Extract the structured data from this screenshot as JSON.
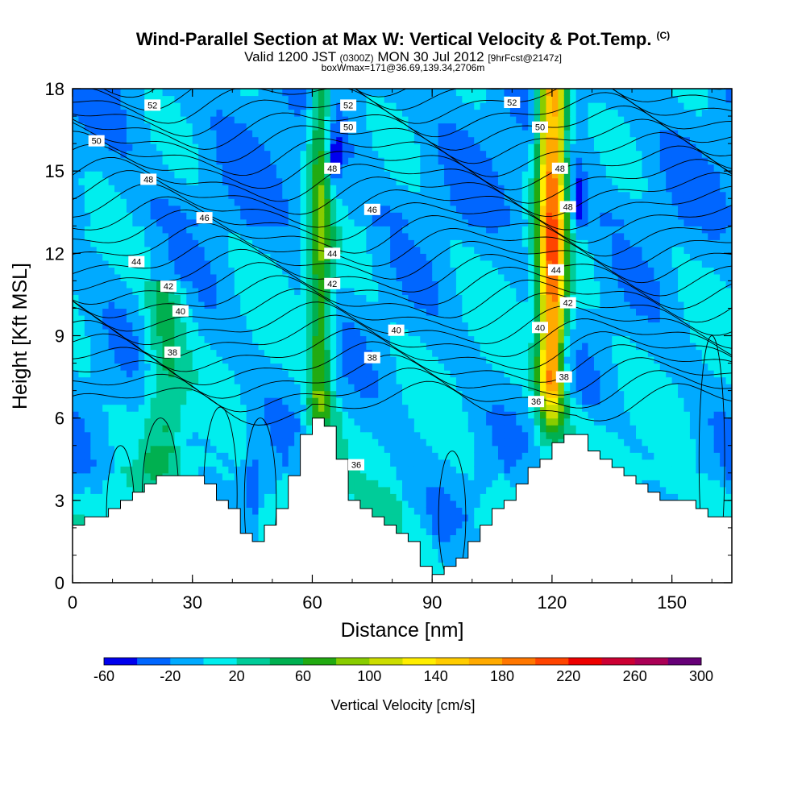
{
  "titles": {
    "main": "Wind-Parallel Section at Max W: Vertical Velocity & Pot.Temp.",
    "copyright": "(C)",
    "valid_prefix": "Valid 1200 JST",
    "valid_zulu": "(0300Z)",
    "valid_date": "MON 30 Jul 2012",
    "forecast": "[9hrFcst@2147z]",
    "box": "boxWmax=171@36.69,139.34,2706m"
  },
  "chart_data": {
    "type": "heatmap",
    "xlabel": "Distance [nm]",
    "ylabel": "Height [Kft MSL]",
    "xlim": [
      0,
      165
    ],
    "ylim": [
      0,
      18
    ],
    "x_ticks": [
      0,
      30,
      60,
      90,
      120,
      150
    ],
    "y_ticks": [
      0,
      3,
      6,
      9,
      12,
      15,
      18
    ],
    "colorbar": {
      "label": "Vertical Velocity [cm/s]",
      "levels": [
        -60,
        -40,
        -20,
        0,
        20,
        40,
        60,
        80,
        100,
        120,
        140,
        160,
        180,
        200,
        220,
        240,
        260,
        280,
        300
      ],
      "tick_labels": [
        "-60",
        "-20",
        "20",
        "60",
        "100",
        "140",
        "180",
        "220",
        "260",
        "300"
      ],
      "colors": [
        "#0000ee",
        "#0066ff",
        "#00aaff",
        "#00eeee",
        "#00cc99",
        "#00b050",
        "#22aa11",
        "#88cc00",
        "#ccdd00",
        "#ffee00",
        "#ffcc00",
        "#ffaa00",
        "#ff7700",
        "#ff4400",
        "#ee0000",
        "#cc0033",
        "#aa0055",
        "#660077"
      ]
    },
    "terrain_kft": {
      "x": [
        0,
        5,
        10,
        15,
        20,
        25,
        30,
        35,
        40,
        43,
        45,
        48,
        52,
        55,
        58,
        60,
        63,
        66,
        68,
        70,
        74,
        78,
        82,
        86,
        88,
        90,
        92,
        94,
        96,
        100,
        104,
        108,
        112,
        116,
        120,
        123,
        126,
        130,
        134,
        138,
        142,
        146,
        150,
        154,
        158,
        162,
        165
      ],
      "y": [
        2.0,
        2.3,
        2.7,
        3.2,
        3.7,
        3.9,
        3.9,
        3.5,
        2.7,
        1.8,
        1.35,
        1.6,
        2.6,
        3.8,
        5.1,
        5.9,
        5.9,
        5.5,
        4.3,
        3.2,
        2.6,
        2.3,
        1.9,
        1.4,
        0.8,
        0.4,
        0.35,
        0.35,
        0.8,
        1.4,
        2.2,
        2.8,
        3.4,
        4.2,
        4.9,
        5.5,
        5.5,
        5.0,
        4.4,
        3.9,
        3.5,
        3.2,
        3.0,
        3.0,
        2.7,
        2.4,
        2.1
      ]
    },
    "updrafts": [
      {
        "x": 62,
        "z_min": 4.8,
        "z_max": 18,
        "peak_cm_s": 80,
        "halfwidth_nm": 3
      },
      {
        "x": 120,
        "z_min": 5.6,
        "z_max": 18,
        "peak_cm_s": 200,
        "halfwidth_nm": 3.5
      },
      {
        "x": 23,
        "z_min": 4.0,
        "z_max": 10.0,
        "peak_cm_s": 50,
        "halfwidth_nm": 5
      }
    ],
    "downdrafts": [
      {
        "x": 65.5,
        "z": 15.5,
        "peak_cm_s": -50
      },
      {
        "x": 126.5,
        "z": 13.8,
        "peak_cm_s": -50
      },
      {
        "x": 123,
        "z": 8.0,
        "peak_cm_s": -45
      },
      {
        "x": 45,
        "z": 3.6,
        "peak_cm_s": -40
      }
    ],
    "theta_labels": [
      {
        "text": "52",
        "x": 20,
        "z": 17.4
      },
      {
        "text": "52",
        "x": 69,
        "z": 17.4
      },
      {
        "text": "52",
        "x": 110,
        "z": 17.5
      },
      {
        "text": "50",
        "x": 6,
        "z": 16.1
      },
      {
        "text": "50",
        "x": 69,
        "z": 16.6
      },
      {
        "text": "50",
        "x": 117,
        "z": 16.6
      },
      {
        "text": "48",
        "x": 19,
        "z": 14.7
      },
      {
        "text": "48",
        "x": 65,
        "z": 15.1
      },
      {
        "text": "48",
        "x": 122,
        "z": 15.1
      },
      {
        "text": "48",
        "x": 124,
        "z": 13.7
      },
      {
        "text": "46",
        "x": 33,
        "z": 13.3
      },
      {
        "text": "46",
        "x": 75,
        "z": 13.6
      },
      {
        "text": "44",
        "x": 16,
        "z": 11.7
      },
      {
        "text": "44",
        "x": 65,
        "z": 12.0
      },
      {
        "text": "44",
        "x": 121,
        "z": 11.4
      },
      {
        "text": "42",
        "x": 24,
        "z": 10.8
      },
      {
        "text": "42",
        "x": 65,
        "z": 10.9
      },
      {
        "text": "42",
        "x": 124,
        "z": 10.2
      },
      {
        "text": "40",
        "x": 27,
        "z": 9.9
      },
      {
        "text": "40",
        "x": 81,
        "z": 9.2
      },
      {
        "text": "40",
        "x": 117,
        "z": 9.3
      },
      {
        "text": "38",
        "x": 25,
        "z": 8.4
      },
      {
        "text": "38",
        "x": 75,
        "z": 8.2
      },
      {
        "text": "38",
        "x": 123,
        "z": 7.5
      },
      {
        "text": "36",
        "x": 116,
        "z": 6.6
      },
      {
        "text": "36",
        "x": 71,
        "z": 4.3
      }
    ]
  }
}
